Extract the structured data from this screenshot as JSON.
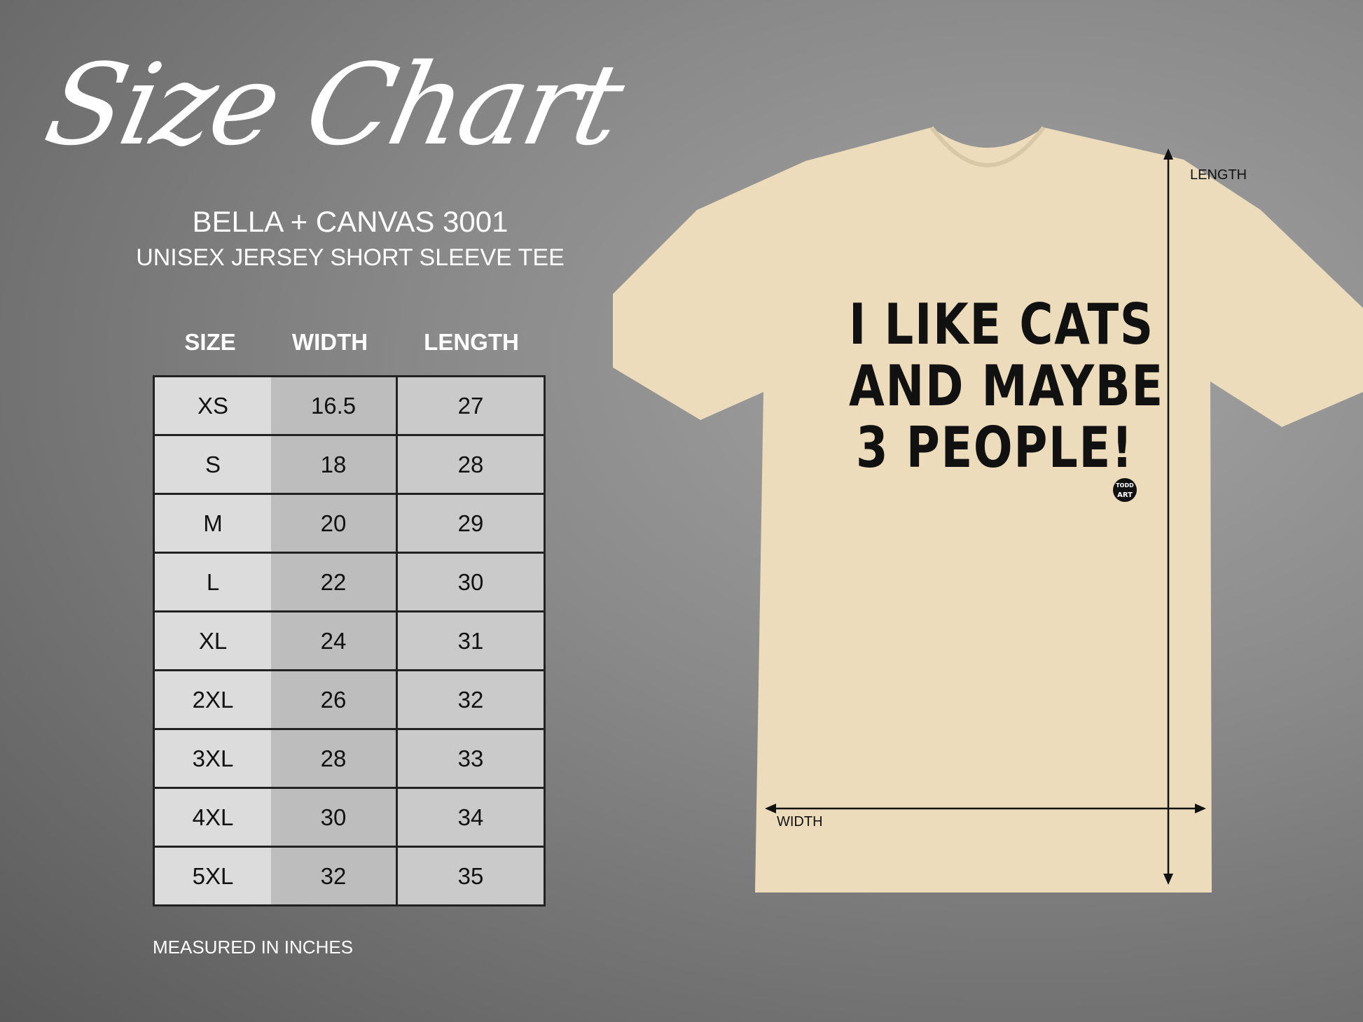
{
  "header": {
    "title": "Size Chart",
    "brand": "BELLA + CANVAS 3001",
    "subtitle": "UNISEX JERSEY SHORT SLEEVE TEE"
  },
  "table": {
    "columns": [
      "SIZE",
      "WIDTH",
      "LENGTH"
    ],
    "rows": [
      [
        "XS",
        "16.5",
        "27"
      ],
      [
        "S",
        "18",
        "28"
      ],
      [
        "M",
        "20",
        "29"
      ],
      [
        "L",
        "22",
        "30"
      ],
      [
        "XL",
        "24",
        "31"
      ],
      [
        "2XL",
        "26",
        "32"
      ],
      [
        "3XL",
        "28",
        "33"
      ],
      [
        "4XL",
        "30",
        "34"
      ],
      [
        "5XL",
        "32",
        "35"
      ]
    ],
    "note": "MEASURED IN INCHES"
  },
  "shirt": {
    "color": "#ecdcbc",
    "print_lines": [
      "I LIKE CATS",
      "AND MAYBE",
      "3 PEOPLE!"
    ],
    "logo_text": [
      "TODD",
      "ART"
    ],
    "length_label": "LENGTH",
    "width_label": "WIDTH"
  }
}
